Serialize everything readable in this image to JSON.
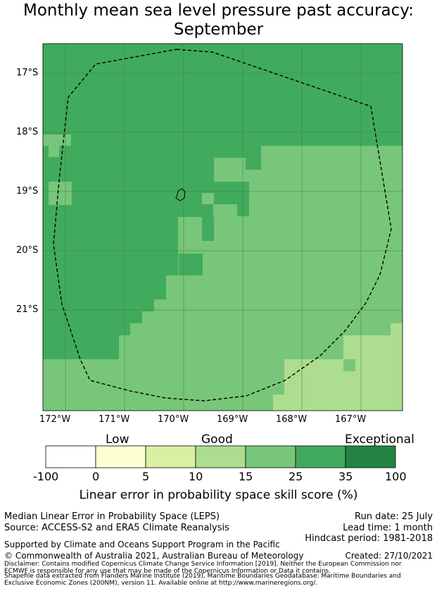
{
  "title_line1": "Monthly mean sea level pressure past accuracy:",
  "title_line2": "September",
  "map": {
    "lat_labels": [
      "17°S",
      "18°S",
      "19°S",
      "20°S",
      "21°S"
    ],
    "lon_labels": [
      "172°W",
      "171°W",
      "170°W",
      "169°W",
      "168°W",
      "167°W"
    ],
    "lat_values": [
      -17,
      -18,
      -19,
      -20,
      -21
    ],
    "lon_values": [
      -172,
      -171,
      -170,
      -169,
      -168,
      -167
    ],
    "colors": {
      "0": "#ffffd4",
      "1": "#d9f0a3",
      "2": "#addd8e",
      "3": "#78c679",
      "4": "#41ab5d",
      "5": "#238443"
    }
  },
  "legend": {
    "category_low": "Low",
    "category_good": "Good",
    "category_exceptional": "Exceptional",
    "ticks": [
      "-100",
      "0",
      "5",
      "10",
      "15",
      "25",
      "35",
      "100"
    ],
    "swatch_colors": [
      "#ffffff",
      "#ffffd4",
      "#d9f0a3",
      "#addd8e",
      "#78c679",
      "#41ab5d",
      "#238443"
    ],
    "axis_title": "Linear error in probability space skill score (%)"
  },
  "footer": {
    "line1_left": "Median Linear Error in Probability Space (LEPS)",
    "line2_left": "Source: ACCESS-S2 and ERA5 Climate Reanalysis",
    "run_date": "Run date: 25 July",
    "lead_time": "Lead time: 1 month",
    "hindcast": "Hindcast period: 1981-2018",
    "supported": "Supported by Climate and Oceans Support Program in the Pacific",
    "copyright": "© Commonwealth of Australia 2021, Australian Bureau of Meteorology",
    "created": "Created: 27/10/2021",
    "disclaimer1": "Disclaimer: Contains modified Copernicus Climate Change Service Information [2019]. Neither the European Commission nor",
    "disclaimer2": "ECMWF is responsible for any use that may be made of the Copernicus Information or Data it contains.",
    "disclaimer3": "Shapefile data extracted from Flanders Marine Institute (2019), Maritime Boundaries Geodatabase: Maritime Boundaries and",
    "disclaimer4": "Exclusive Economic Zones (200NM), version 11. Available online at http://www.marineregions.org/."
  }
}
